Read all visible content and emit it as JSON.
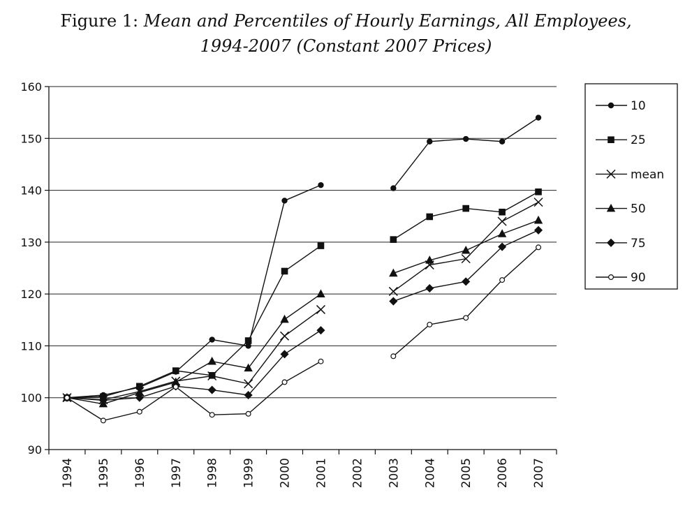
{
  "title": {
    "prefix": "Figure 1:",
    "line1": "Mean and Percentiles of Hourly Earnings, All Employees,",
    "line2": "1994-2007 (Constant 2007 Prices)"
  },
  "chart_data": {
    "type": "line",
    "categories": [
      "1994",
      "1995",
      "1996",
      "1997",
      "1998",
      "1999",
      "2000",
      "2001",
      "2002",
      "2003",
      "2004",
      "2005",
      "2006",
      "2007"
    ],
    "ylim": [
      90,
      160
    ],
    "yticks": [
      90,
      100,
      110,
      120,
      130,
      140,
      150,
      160
    ],
    "grid": true,
    "legend_position": "right",
    "series": [
      {
        "name": "10",
        "marker": "filled-circle",
        "values": [
          100,
          100.5,
          102.0,
          105.0,
          111.2,
          110.0,
          138.0,
          141.0,
          null,
          140.4,
          149.4,
          149.9,
          149.4,
          154.0
        ]
      },
      {
        "name": "25",
        "marker": "filled-square",
        "values": [
          100,
          100.2,
          102.2,
          105.2,
          104.3,
          111.0,
          124.4,
          129.3,
          null,
          130.5,
          134.9,
          136.5,
          135.8,
          139.7
        ]
      },
      {
        "name": "mean",
        "marker": "x",
        "values": [
          100,
          99.6,
          101.2,
          103.2,
          104.2,
          102.7,
          111.9,
          117.0,
          null,
          120.5,
          125.6,
          126.8,
          134.0,
          137.7
        ]
      },
      {
        "name": "50",
        "marker": "filled-triangle",
        "values": [
          100,
          98.8,
          101.0,
          103.0,
          107.0,
          105.7,
          115.1,
          120.0,
          null,
          124.0,
          126.5,
          128.4,
          131.6,
          134.2
        ]
      },
      {
        "name": "75",
        "marker": "filled-diamond",
        "values": [
          100,
          99.5,
          100.0,
          102.2,
          101.5,
          100.5,
          108.4,
          113.0,
          null,
          118.6,
          121.1,
          122.4,
          129.1,
          132.3
        ]
      },
      {
        "name": "90",
        "marker": "open-circle",
        "values": [
          100,
          95.6,
          97.3,
          102.1,
          96.7,
          96.9,
          103.0,
          107.0,
          null,
          108.0,
          114.1,
          115.4,
          122.7,
          129.0
        ]
      }
    ]
  }
}
